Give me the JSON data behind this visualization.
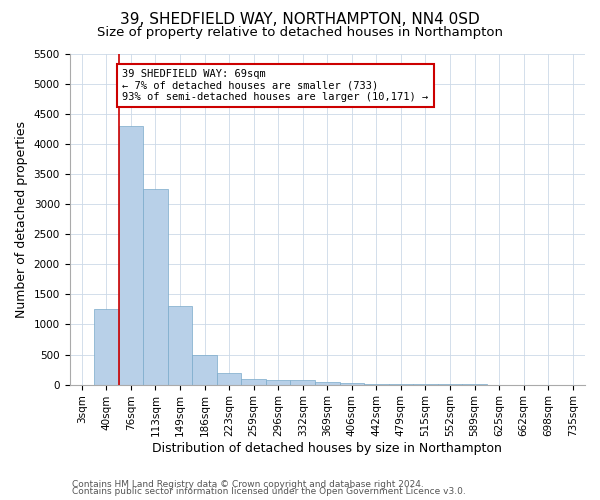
{
  "title": "39, SHEDFIELD WAY, NORTHAMPTON, NN4 0SD",
  "subtitle": "Size of property relative to detached houses in Northampton",
  "xlabel": "Distribution of detached houses by size in Northampton",
  "ylabel": "Number of detached properties",
  "bin_labels": [
    "3sqm",
    "40sqm",
    "76sqm",
    "113sqm",
    "149sqm",
    "186sqm",
    "223sqm",
    "259sqm",
    "296sqm",
    "332sqm",
    "369sqm",
    "406sqm",
    "442sqm",
    "479sqm",
    "515sqm",
    "552sqm",
    "589sqm",
    "625sqm",
    "662sqm",
    "698sqm",
    "735sqm"
  ],
  "bar_values": [
    0,
    1250,
    4300,
    3250,
    1300,
    500,
    200,
    100,
    75,
    75,
    50,
    30,
    15,
    10,
    5,
    3,
    2,
    1,
    1,
    0,
    0
  ],
  "bar_color": "#b8d0e8",
  "bar_edge_color": "#7aaaca",
  "property_line_x": 2,
  "annotation_text": "39 SHEDFIELD WAY: 69sqm\n← 7% of detached houses are smaller (733)\n93% of semi-detached houses are larger (10,171) →",
  "annotation_box_color": "#ffffff",
  "annotation_box_edge": "#cc0000",
  "vline_color": "#cc0000",
  "ylim": [
    0,
    5500
  ],
  "yticks": [
    0,
    500,
    1000,
    1500,
    2000,
    2500,
    3000,
    3500,
    4000,
    4500,
    5000,
    5500
  ],
  "footer_line1": "Contains HM Land Registry data © Crown copyright and database right 2024.",
  "footer_line2": "Contains public sector information licensed under the Open Government Licence v3.0.",
  "bg_color": "#ffffff",
  "grid_color": "#ccd9e8",
  "title_fontsize": 11,
  "subtitle_fontsize": 9.5,
  "axis_label_fontsize": 9,
  "tick_fontsize": 7.5,
  "footer_fontsize": 6.5
}
